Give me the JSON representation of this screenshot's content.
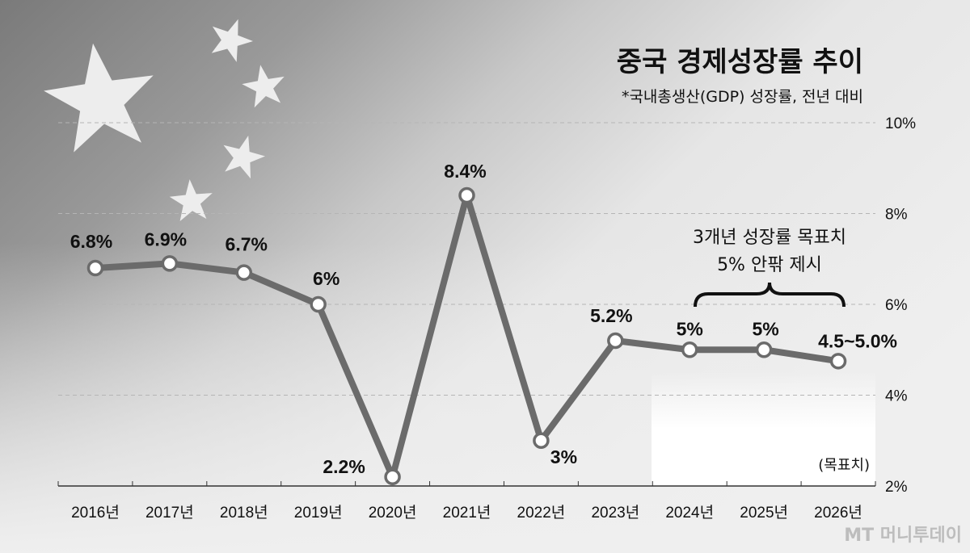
{
  "chart_data": {
    "type": "line",
    "title": "중국 경제성장률 추이",
    "subtitle": "*국내총생산(GDP) 성장률, 전년 대비",
    "categories": [
      "2016년",
      "2017년",
      "2018년",
      "2019년",
      "2020년",
      "2021년",
      "2022년",
      "2023년",
      "2024년",
      "2025년",
      "2026년"
    ],
    "values": [
      6.8,
      6.9,
      6.7,
      6.0,
      2.2,
      8.4,
      3.0,
      5.2,
      5.0,
      5.0,
      4.75
    ],
    "value_labels": [
      "6.8%",
      "6.9%",
      "6.7%",
      "6%",
      "2.2%",
      "8.4%",
      "3%",
      "5.2%",
      "5%",
      "5%",
      "4.5~5.0%"
    ],
    "ylim": [
      2,
      10
    ],
    "yticks": [
      "2%",
      "4%",
      "6%",
      "8%",
      "10%"
    ],
    "ytick_values": [
      2,
      4,
      6,
      8,
      10
    ],
    "grid": true,
    "y_axis_side": "right",
    "annotation": [
      "3개년 성장률 목표치",
      "5% 안팎 제시"
    ],
    "target_note": "(목표치)",
    "target_range": [
      "2024년",
      "2026년"
    ],
    "line_color": "#6b6b6b",
    "marker_fill": "#ffffff"
  },
  "watermark": "MT 머니투데이"
}
